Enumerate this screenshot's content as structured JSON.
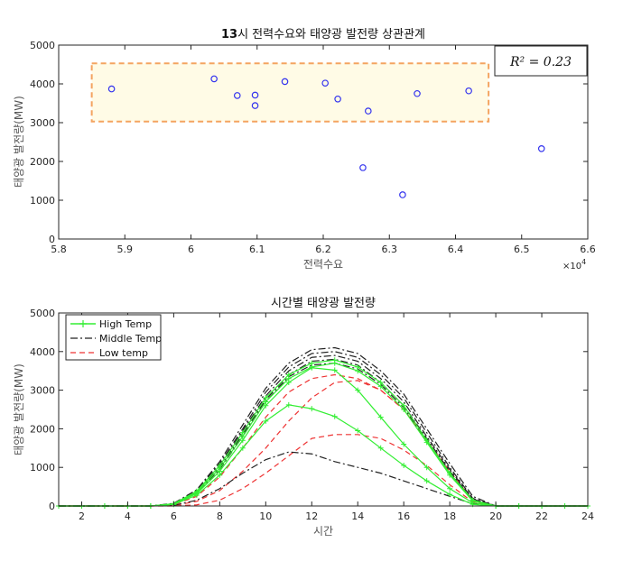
{
  "chart_data": [
    {
      "type": "scatter",
      "title_prefix": "13",
      "title_rest": "시 전력수요와 태양광 발전량 상관관계",
      "xlabel": "전력수요",
      "ylabel": "태양광 발전량(MW)",
      "x_exponent_label": "×10",
      "x_exponent_value": "4",
      "xlim": [
        5.8,
        6.6
      ],
      "ylim": [
        0,
        5000
      ],
      "xticks": [
        "5.8",
        "5.9",
        "6",
        "6.1",
        "6.2",
        "6.3",
        "6.4",
        "6.5",
        "6.6"
      ],
      "yticks": [
        "0",
        "1000",
        "2000",
        "3000",
        "4000",
        "5000"
      ],
      "annotation": "R² = 0.23",
      "highlight_box": {
        "x": [
          5.85,
          6.45
        ],
        "y": [
          3030,
          4530
        ]
      },
      "grid": false,
      "points": [
        {
          "x": 5.88,
          "y": 3870
        },
        {
          "x": 6.035,
          "y": 4130
        },
        {
          "x": 6.07,
          "y": 3700
        },
        {
          "x": 6.097,
          "y": 3710
        },
        {
          "x": 6.097,
          "y": 3440
        },
        {
          "x": 6.142,
          "y": 4060
        },
        {
          "x": 6.203,
          "y": 4020
        },
        {
          "x": 6.222,
          "y": 3610
        },
        {
          "x": 6.268,
          "y": 3300
        },
        {
          "x": 6.342,
          "y": 3750
        },
        {
          "x": 6.42,
          "y": 3820
        },
        {
          "x": 6.26,
          "y": 1840
        },
        {
          "x": 6.32,
          "y": 1140
        },
        {
          "x": 6.53,
          "y": 2330
        }
      ]
    },
    {
      "type": "line",
      "title": "시간별 태양광 발전량",
      "xlabel": "시간",
      "ylabel": "태양광 발전량(MW)",
      "xlim": [
        1,
        24
      ],
      "ylim": [
        0,
        5000
      ],
      "xticks": [
        "2",
        "4",
        "6",
        "8",
        "10",
        "12",
        "14",
        "16",
        "18",
        "20",
        "22",
        "24"
      ],
      "yticks": [
        "0",
        "1000",
        "2000",
        "3000",
        "4000",
        "5000"
      ],
      "legend_position": "top-left",
      "grid": false,
      "x": [
        1,
        2,
        3,
        4,
        5,
        6,
        7,
        8,
        9,
        10,
        11,
        12,
        13,
        14,
        15,
        16,
        17,
        18,
        19,
        20,
        21,
        22,
        23,
        24
      ],
      "series": [
        {
          "name": "High Temp",
          "group": "high",
          "values": [
            0,
            0,
            0,
            0,
            0,
            60,
            380,
            1050,
            1900,
            2800,
            3400,
            3700,
            3780,
            3600,
            3200,
            2600,
            1700,
            850,
            150,
            0,
            0,
            0,
            0,
            0
          ]
        },
        {
          "group": "high",
          "values": [
            0,
            0,
            0,
            0,
            0,
            50,
            350,
            980,
            1800,
            2700,
            3300,
            3600,
            3700,
            3500,
            3100,
            2500,
            1650,
            800,
            130,
            0,
            0,
            0,
            0,
            0
          ]
        },
        {
          "group": "high",
          "values": [
            0,
            0,
            0,
            0,
            0,
            45,
            320,
            900,
            1700,
            2600,
            3200,
            3580,
            3520,
            3000,
            2300,
            1600,
            1000,
            450,
            80,
            0,
            0,
            0,
            0,
            0
          ]
        },
        {
          "group": "high",
          "values": [
            0,
            0,
            0,
            0,
            0,
            40,
            280,
            800,
            1500,
            2200,
            2620,
            2520,
            2320,
            1950,
            1500,
            1050,
            650,
            300,
            40,
            0,
            0,
            0,
            0,
            0
          ]
        },
        {
          "name": "Middle Temp",
          "group": "middle",
          "values": [
            0,
            0,
            0,
            0,
            0,
            70,
            420,
            1150,
            2100,
            3050,
            3700,
            4050,
            4100,
            3950,
            3500,
            2900,
            2000,
            1100,
            250,
            0,
            0,
            0,
            0,
            0
          ]
        },
        {
          "group": "middle",
          "values": [
            0,
            0,
            0,
            0,
            0,
            60,
            400,
            1100,
            2000,
            2950,
            3600,
            3950,
            4000,
            3850,
            3400,
            2800,
            1900,
            1000,
            200,
            0,
            0,
            0,
            0,
            0
          ]
        },
        {
          "group": "middle",
          "values": [
            0,
            0,
            0,
            0,
            0,
            55,
            380,
            1050,
            1950,
            2850,
            3500,
            3850,
            3900,
            3750,
            3300,
            2700,
            1800,
            950,
            180,
            0,
            0,
            0,
            0,
            0
          ]
        },
        {
          "group": "middle",
          "values": [
            0,
            0,
            0,
            0,
            0,
            50,
            360,
            1000,
            1850,
            2750,
            3400,
            3750,
            3800,
            3650,
            3200,
            2600,
            1750,
            900,
            150,
            0,
            0,
            0,
            0,
            0
          ]
        },
        {
          "group": "middle",
          "values": [
            0,
            0,
            0,
            0,
            0,
            45,
            340,
            950,
            1800,
            2700,
            3350,
            3650,
            3700,
            3550,
            3150,
            2550,
            1700,
            850,
            140,
            0,
            0,
            0,
            0,
            0
          ]
        },
        {
          "group": "middle",
          "values": [
            0,
            0,
            0,
            0,
            0,
            15,
            150,
            450,
            850,
            1200,
            1400,
            1350,
            1150,
            1000,
            850,
            650,
            450,
            250,
            60,
            0,
            0,
            0,
            0,
            0
          ]
        },
        {
          "name": "Low temp",
          "group": "low",
          "values": [
            0,
            0,
            0,
            0,
            0,
            30,
            250,
            750,
            1500,
            2300,
            2950,
            3300,
            3400,
            3300,
            3000,
            2500,
            1700,
            900,
            150,
            0,
            0,
            0,
            0,
            0
          ]
        },
        {
          "group": "low",
          "values": [
            0,
            0,
            0,
            0,
            0,
            10,
            120,
            400,
            900,
            1500,
            2200,
            2800,
            3200,
            3250,
            3000,
            2500,
            1700,
            850,
            120,
            0,
            0,
            0,
            0,
            0
          ]
        },
        {
          "group": "low",
          "values": [
            0,
            0,
            0,
            0,
            0,
            0,
            30,
            150,
            450,
            850,
            1300,
            1750,
            1850,
            1850,
            1750,
            1450,
            1050,
            550,
            100,
            0,
            0,
            0,
            0,
            0
          ]
        }
      ],
      "colors": {
        "high": "#33ee33",
        "middle": "#222222",
        "low": "#ee3333"
      }
    }
  ]
}
